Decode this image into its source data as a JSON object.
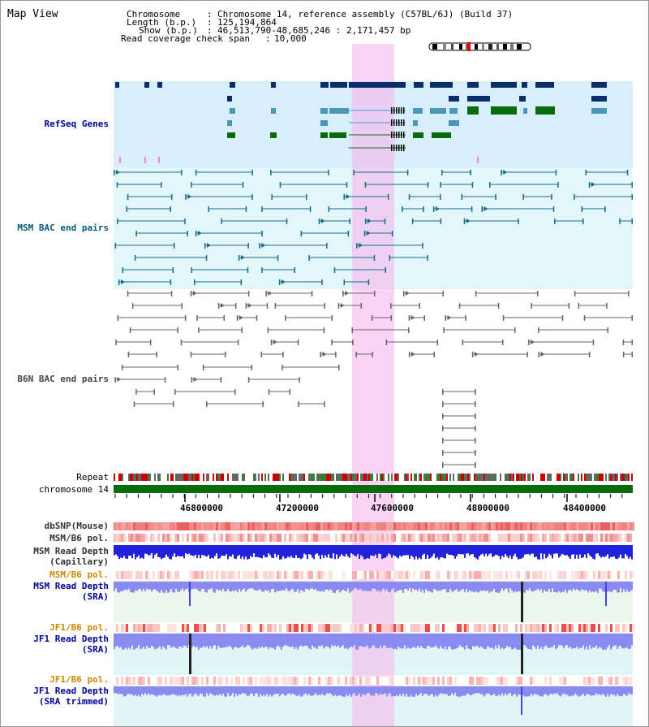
{
  "header": {
    "title": "Map View",
    "chromosome_label": "Chromosome",
    "chromosome_value": "Chromosome 14, reference assembly (C57BL/6J) (Build 37)",
    "length_label": "Length (b.p.)",
    "length_value": "125,194,864",
    "show_label": "Show (b.p.)",
    "show_value": "46,513,790-48,685,246 : 2,171,457 bp",
    "coverage_label": "Read coverage check span",
    "coverage_value": "10,000"
  },
  "axis": {
    "tick_labels": [
      "46800000",
      "47200000",
      "47600000",
      "48000000",
      "48400000"
    ]
  },
  "tracks": {
    "refseq": "RefSeq Genes",
    "msm_bac": "MSM BAC end pairs",
    "b6n_bac": "B6N BAC end pairs",
    "repeat": "Repeat",
    "chromosome": "chromosome 14",
    "dbsnp": "dbSNP(Mouse)",
    "msm_b6_pol": "MSM/B6 pol.",
    "msm_depth_cap_1": "MSM Read Depth",
    "msm_depth_cap_2": "(Capillary)",
    "msm_b6_pol_2": "MSM/B6 pol.",
    "msm_depth_sra_1": "MSM Read Depth",
    "msm_depth_sra_2": "(SRA)",
    "jf1_b6_pol": "JF1/B6 pol.",
    "jf1_depth_sra_1": "JF1 Read Depth",
    "jf1_depth_sra_2": "(SRA)",
    "jf1_b6_pol_2": "JF1/B6 pol.",
    "jf1_depth_trim_1": "JF1 Read Depth",
    "jf1_depth_trim_2": "(SRA trimmed)"
  },
  "colors": {
    "highlight": "#f7d0f0",
    "refseq_bg": "#d8eefa",
    "msm_bg": "#e2f7fa",
    "refseq_navy": "#0b2e6b",
    "refseq_teal": "#4a98b8",
    "refseq_green": "#0a6b0a",
    "msm_pair": "#1a6a8a",
    "b6n_pair": "#666666",
    "chromosome": "#0a6b0a",
    "label_blue": "#000099",
    "label_teal": "#0a5a78",
    "label_orange": "#cc8800",
    "depth_blue": "#2222dd",
    "depth_sra": "#8a8af0"
  }
}
